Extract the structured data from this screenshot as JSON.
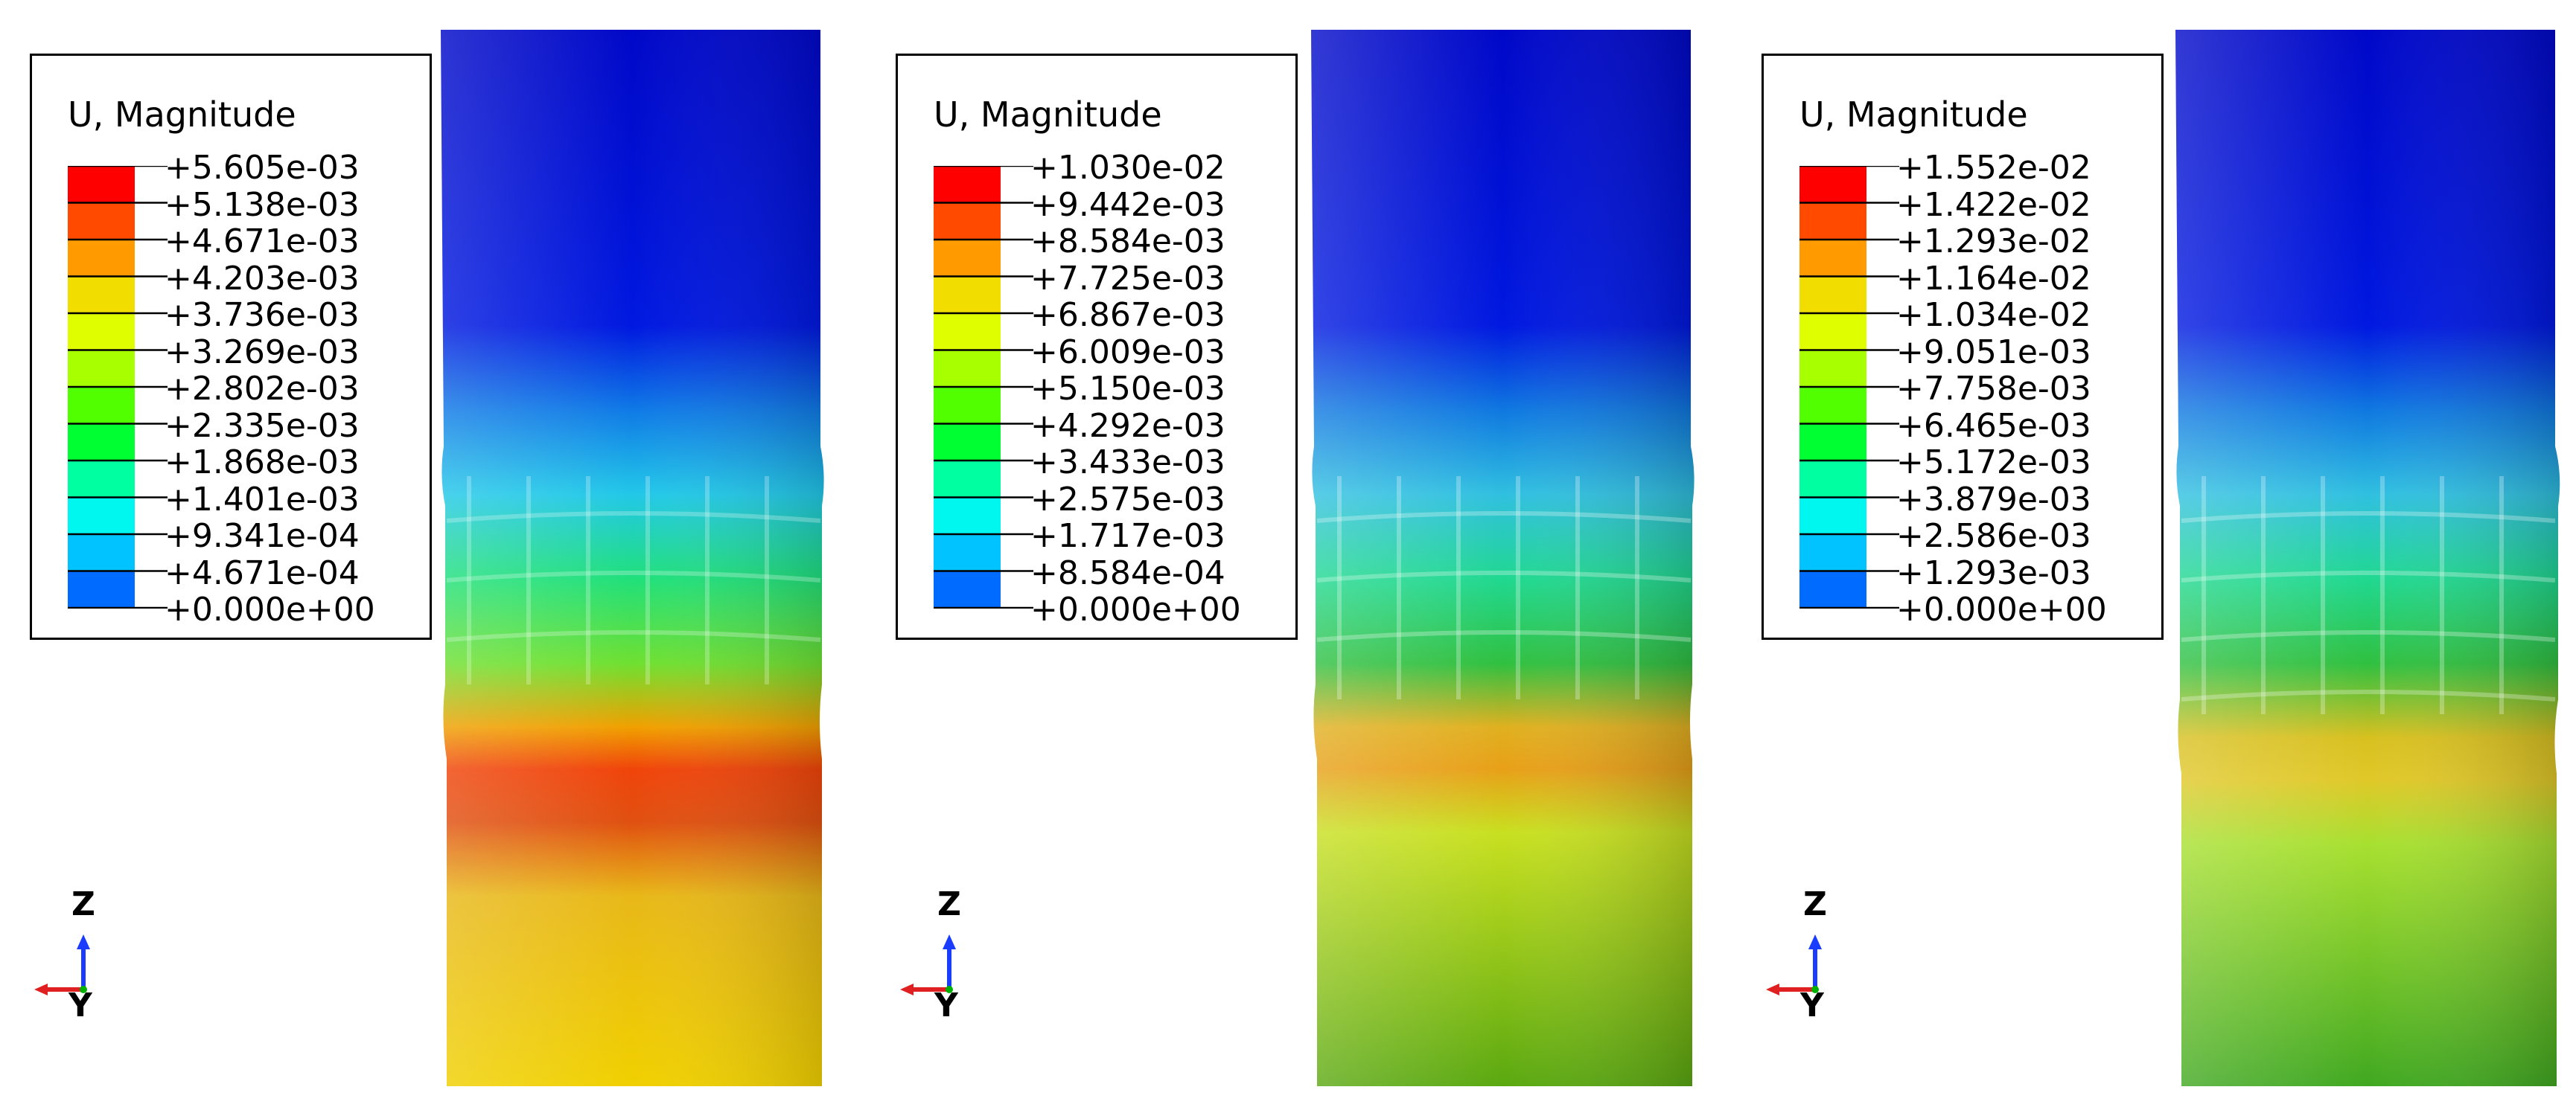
{
  "panels": [
    {
      "legend_title": "U, Magnitude",
      "ticks": [
        "+5.605e-03",
        "+5.138e-03",
        "+4.671e-03",
        "+4.203e-03",
        "+3.736e-03",
        "+3.269e-03",
        "+2.802e-03",
        "+2.335e-03",
        "+1.868e-03",
        "+1.401e-03",
        "+9.341e-04",
        "+4.671e-04",
        "+0.000e+00"
      ],
      "axes": {
        "z": "Z",
        "y": "Y"
      }
    },
    {
      "legend_title": "U, Magnitude",
      "ticks": [
        "+1.030e-02",
        "+9.442e-03",
        "+8.584e-03",
        "+7.725e-03",
        "+6.867e-03",
        "+6.009e-03",
        "+5.150e-03",
        "+4.292e-03",
        "+3.433e-03",
        "+2.575e-03",
        "+1.717e-03",
        "+8.584e-04",
        "+0.000e+00"
      ],
      "axes": {
        "z": "Z",
        "y": "Y"
      }
    },
    {
      "legend_title": "U, Magnitude",
      "ticks": [
        "+1.552e-02",
        "+1.422e-02",
        "+1.293e-02",
        "+1.164e-02",
        "+1.034e-02",
        "+9.051e-03",
        "+7.758e-03",
        "+6.465e-03",
        "+5.172e-03",
        "+3.879e-03",
        "+2.586e-03",
        "+1.293e-03",
        "+0.000e+00"
      ],
      "axes": {
        "z": "Z",
        "y": "Y"
      }
    }
  ],
  "colors": {
    "scale": [
      "#ff0000",
      "#ff4a00",
      "#ff9a00",
      "#f2dd00",
      "#dfff00",
      "#a8ff00",
      "#52ff00",
      "#00ff32",
      "#00ffa0",
      "#00f7f0",
      "#00c3ff",
      "#006cff",
      "#0000ff"
    ],
    "axis_x": "#e02020",
    "axis_y": "#00b000",
    "axis_z": "#1a3cff"
  }
}
